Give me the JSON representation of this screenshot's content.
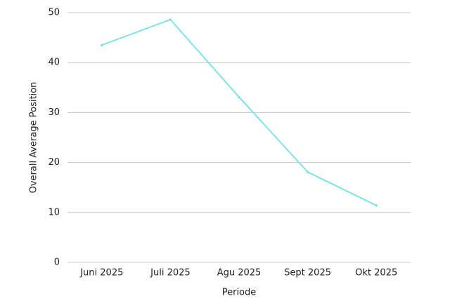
{
  "chart_data": {
    "type": "line",
    "x_label": "Periode",
    "y_label": "Overall Average Position",
    "categories": [
      "Juni 2025",
      "Juli 2025",
      "Agu 2025",
      "Sept 2025",
      "Okt 2025"
    ],
    "series": [
      {
        "name": "Overall Average Position",
        "color": "#7fe3e6",
        "values": [
          43.5,
          48.6,
          33.1,
          18.1,
          11.4
        ]
      }
    ],
    "ylim": [
      0,
      50
    ],
    "yticks": [
      0,
      10,
      20,
      30,
      40,
      50
    ],
    "grid": true
  }
}
